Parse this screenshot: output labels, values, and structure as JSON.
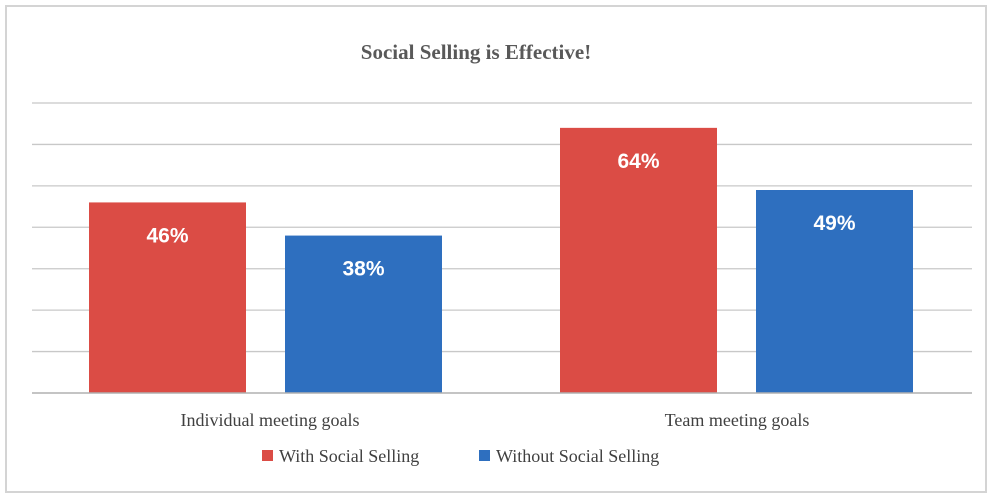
{
  "chart_data": {
    "type": "bar",
    "title": "Social Selling is Effective!",
    "categories": [
      "Individual meeting goals",
      "Team meeting goals"
    ],
    "series": [
      {
        "name": "With Social Selling",
        "values": [
          46,
          64
        ],
        "labels": [
          "46%",
          "64%"
        ],
        "color": "#db4c45"
      },
      {
        "name": "Without Social Selling",
        "values": [
          38,
          49
        ],
        "labels": [
          "38%",
          "49%"
        ],
        "color": "#2e6fbf"
      }
    ],
    "xlabel": "",
    "ylabel": "",
    "ylim": [
      0,
      70
    ],
    "grid": true,
    "legend": "bottom"
  }
}
